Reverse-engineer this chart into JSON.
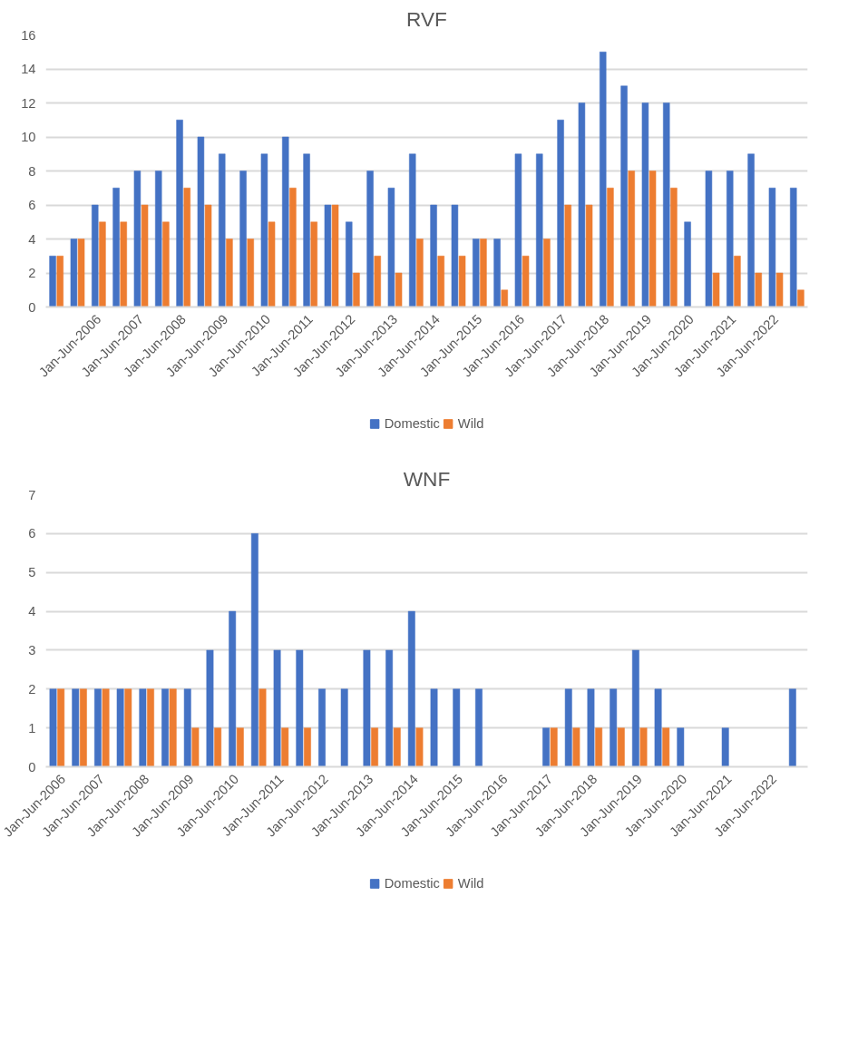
{
  "chart_data": [
    {
      "type": "bar",
      "title": "RVF",
      "categories": [
        null,
        null,
        "Jan-Jun-2006",
        null,
        "Jan-Jun-2007",
        null,
        "Jan-Jun-2008",
        null,
        "Jan-Jun-2009",
        null,
        "Jan-Jun-2010",
        null,
        "Jan-Jun-2011",
        null,
        "Jan-Jun-2012",
        null,
        "Jan-Jun-2013",
        null,
        "Jan-Jun-2014",
        null,
        "Jan-Jun-2015",
        null,
        "Jan-Jun-2016",
        null,
        "Jan-Jun-2017",
        null,
        "Jan-Jun-2018",
        null,
        "Jan-Jun-2019",
        null,
        "Jan-Jun-2020",
        null,
        "Jan-Jun-2021",
        null,
        "Jan-Jun-2022",
        null
      ],
      "series": [
        {
          "name": "Domestic",
          "color": "#4472c4",
          "values": [
            3,
            4,
            6,
            7,
            8,
            8,
            11,
            10,
            9,
            8,
            9,
            10,
            9,
            6,
            5,
            8,
            7,
            9,
            6,
            6,
            4,
            4,
            9,
            9,
            11,
            12,
            15,
            13,
            12,
            12,
            5,
            8,
            8,
            9,
            7,
            7
          ]
        },
        {
          "name": "Wild",
          "color": "#ed7d31",
          "values": [
            3,
            4,
            5,
            5,
            6,
            5,
            7,
            6,
            4,
            4,
            5,
            7,
            5,
            6,
            2,
            3,
            2,
            4,
            3,
            3,
            4,
            1,
            3,
            4,
            6,
            6,
            7,
            8,
            8,
            7,
            0,
            2,
            3,
            2,
            2,
            1
          ]
        }
      ],
      "ylim": [
        0,
        16
      ],
      "yticks": [
        0,
        2,
        4,
        6,
        8,
        10,
        12,
        14,
        16
      ],
      "grid": "y",
      "legend": "bottom"
    },
    {
      "type": "bar",
      "title": "WNF",
      "categories": [
        "Jan-Jun-2006",
        null,
        "Jan-Jun-2007",
        null,
        "Jan-Jun-2008",
        null,
        "Jan-Jun-2009",
        null,
        "Jan-Jun-2010",
        null,
        "Jan-Jun-2011",
        null,
        "Jan-Jun-2012",
        null,
        "Jan-Jun-2013",
        null,
        "Jan-Jun-2014",
        null,
        "Jan-Jun-2015",
        null,
        "Jan-Jun-2016",
        null,
        "Jan-Jun-2017",
        null,
        "Jan-Jun-2018",
        null,
        "Jan-Jun-2019",
        null,
        "Jan-Jun-2020",
        null,
        "Jan-Jun-2021",
        null,
        "Jan-Jun-2022",
        null
      ],
      "series": [
        {
          "name": "Domestic",
          "color": "#4472c4",
          "values": [
            2,
            2,
            2,
            2,
            2,
            2,
            2,
            3,
            4,
            6,
            3,
            3,
            2,
            2,
            3,
            3,
            4,
            2,
            2,
            2,
            0,
            0,
            1,
            2,
            2,
            2,
            3,
            2,
            1,
            0,
            1,
            0,
            0,
            2
          ]
        },
        {
          "name": "Wild",
          "color": "#ed7d31",
          "values": [
            2,
            2,
            2,
            2,
            2,
            2,
            1,
            1,
            1,
            2,
            1,
            1,
            0,
            0,
            1,
            1,
            1,
            0,
            0,
            0,
            0,
            0,
            1,
            1,
            1,
            1,
            1,
            1,
            0,
            0,
            0,
            0,
            0,
            0
          ]
        }
      ],
      "ylim": [
        0,
        7
      ],
      "yticks": [
        0,
        1,
        2,
        3,
        4,
        5,
        6,
        7
      ],
      "grid": "y",
      "legend": "bottom"
    }
  ]
}
